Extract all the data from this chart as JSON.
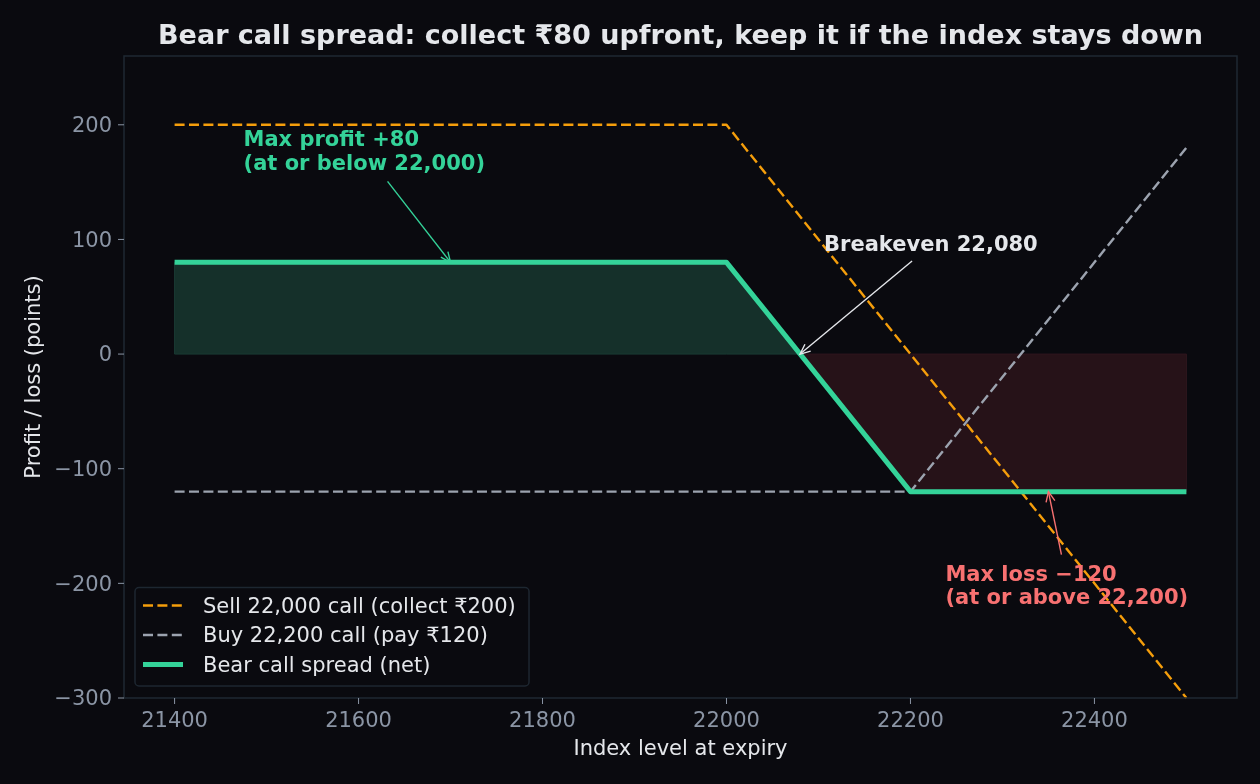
{
  "chart_data": {
    "type": "line",
    "title": "Bear call spread: collect ₹80 upfront, keep it if the index stays down",
    "xlabel": "Index level at expiry",
    "ylabel": "Profit / loss (points)",
    "xlim": [
      21345,
      22555
    ],
    "ylim": [
      -300,
      260
    ],
    "xticks": [
      21400,
      21600,
      21800,
      22000,
      22200,
      22400
    ],
    "yticks": [
      {
        "value": -300,
        "label": "−300"
      },
      {
        "value": -200,
        "label": "−200"
      },
      {
        "value": -100,
        "label": "−100"
      },
      0,
      100,
      200
    ],
    "grid": false,
    "legend": "bottom left",
    "series": [
      {
        "type": "area",
        "color": "#15302a",
        "x": [
          21400,
          22000,
          22080
        ],
        "values": [
          80,
          80,
          0
        ]
      },
      {
        "type": "area",
        "color": "#261218",
        "x": [
          22080,
          22200,
          22500
        ],
        "values": [
          0,
          -120,
          -120
        ]
      },
      {
        "name": "Sell 22,000 call (collect ₹200)",
        "color": "#f59e0b",
        "line_style": "dashed",
        "x": [
          21400,
          22000,
          22500
        ],
        "values": [
          200,
          200,
          -300
        ]
      },
      {
        "name": "Buy 22,200 call (pay ₹120)",
        "color": "#9ca3af",
        "line_style": "dashed",
        "x": [
          21400,
          22200,
          22500
        ],
        "values": [
          -120,
          -120,
          180
        ]
      },
      {
        "name": "Bear call spread (net)",
        "color": "#34d399",
        "line_style": "solid",
        "x": [
          21400,
          22000,
          22200,
          22500
        ],
        "values": [
          80,
          80,
          -120,
          -120
        ]
      }
    ],
    "annotations": [
      {
        "text": "Max profit +80\n(at or below 22,000)",
        "x": 21700,
        "y": 80
      },
      {
        "text": "Breakeven 22,080",
        "x": 22080,
        "y": 0
      },
      {
        "text": "Max loss −120\n(at or above 22,200)",
        "x": 22350,
        "y": -120
      }
    ]
  }
}
